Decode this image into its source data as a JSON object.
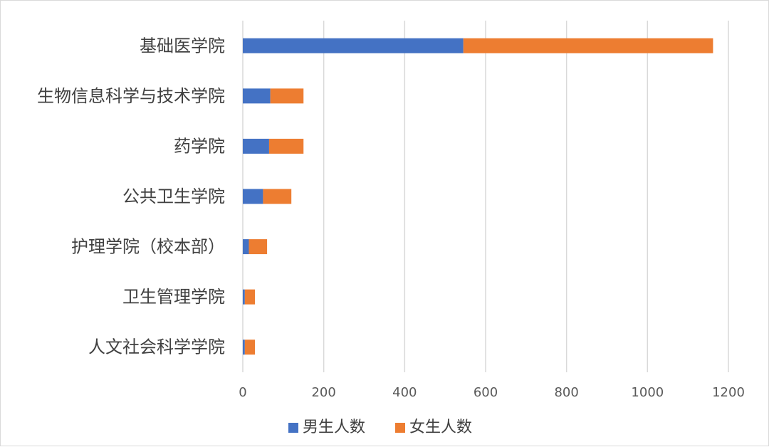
{
  "chart_data": {
    "type": "bar",
    "orientation": "horizontal",
    "stacked": true,
    "title": "",
    "xlabel": "",
    "ylabel": "",
    "categories": [
      "基础医学院",
      "生物信息科学与技术学院",
      "药学院",
      "公共卫生学院",
      "护理学院（校本部）",
      "卫生管理学院",
      "人文社会科学学院"
    ],
    "series": [
      {
        "name": "男生人数",
        "color": "#4472C4",
        "values": [
          545,
          68,
          65,
          50,
          15,
          5,
          5
        ]
      },
      {
        "name": "女生人数",
        "color": "#ED7D31",
        "values": [
          617,
          82,
          85,
          70,
          45,
          25,
          25
        ]
      }
    ],
    "xlim": [
      0,
      1200
    ],
    "xticks": [
      "0",
      "200",
      "400",
      "600",
      "800",
      "1000",
      "1200"
    ],
    "grid": true,
    "legend_position": "bottom"
  }
}
